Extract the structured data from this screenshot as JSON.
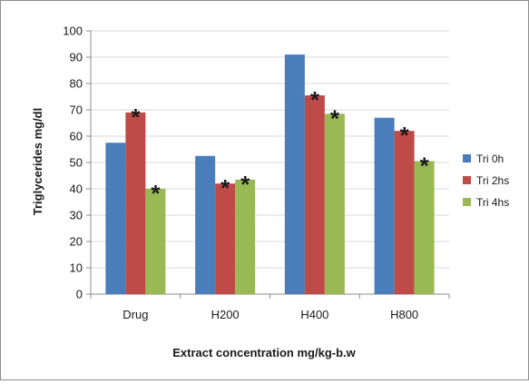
{
  "chart_data": {
    "type": "bar",
    "title": "",
    "xlabel": "Extract concentration mg/kg-b.w",
    "ylabel": "Triglycerides mg/dl",
    "ylim": [
      0,
      100
    ],
    "yticks": [
      "0",
      "10",
      "20",
      "30",
      "40",
      "50",
      "60",
      "70",
      "80",
      "90",
      "100"
    ],
    "grid": true,
    "legend_position": "right",
    "categories": [
      "Drug",
      "H200",
      "H400",
      "H800"
    ],
    "series": [
      {
        "name": "Tri 0h",
        "color": "#4a7ebb",
        "values": [
          57.5,
          52.5,
          91,
          67
        ],
        "significant": [
          false,
          false,
          false,
          false
        ]
      },
      {
        "name": "Tri 2hs",
        "color": "#be4b48",
        "values": [
          69,
          42,
          75.5,
          62
        ],
        "significant": [
          true,
          true,
          true,
          true
        ]
      },
      {
        "name": "Tri 4hs",
        "color": "#98b954",
        "values": [
          40,
          43.5,
          68.5,
          50.5
        ],
        "significant": [
          true,
          true,
          true,
          true
        ]
      }
    ],
    "significance_marker": "*"
  }
}
